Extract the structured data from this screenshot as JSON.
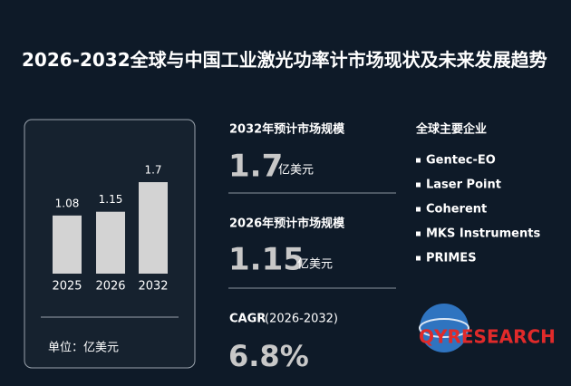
{
  "chart_data": {
    "type": "bar",
    "title": "2026-2032全球与中国工业激光功率计市场现状及未来发展趋势",
    "categories": [
      "2025",
      "2026",
      "2032"
    ],
    "values": [
      1.08,
      1.15,
      1.7
    ],
    "color": "#d3d3d3",
    "unit_note": "单位：亿美元"
  },
  "stats": [
    {
      "label": "2032年预计市场规模",
      "value": "1.7",
      "unit": "亿美元"
    },
    {
      "label": "2026年预计市场规模",
      "value": "1.15",
      "unit": "亿美元"
    }
  ],
  "cagr": {
    "label": "CAGR",
    "period": "(2026-2032)",
    "value": "6.8%"
  },
  "companies": {
    "title": "全球主要企业",
    "items": [
      "Gentec-EO",
      "Laser Point",
      "Coherent",
      "MKS Instruments",
      "PRIMES"
    ]
  },
  "logo": {
    "text": "QYRESEARCH"
  }
}
